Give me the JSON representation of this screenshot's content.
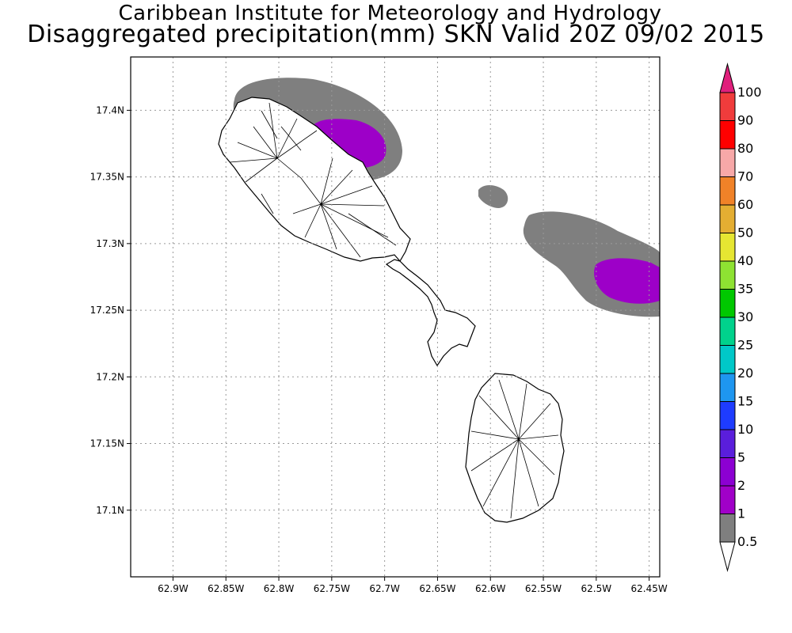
{
  "title": {
    "line1": "Caribbean Institute for Meteorology and Hydrology",
    "line2": "Disaggregated precipitation(mm) SKN Valid 20Z 09/02 2015"
  },
  "map": {
    "lon_range": [
      -62.94,
      -62.44
    ],
    "lat_range": [
      17.05,
      17.44
    ],
    "x_ticks": [
      {
        "value": -62.9,
        "label": "62.9W"
      },
      {
        "value": -62.85,
        "label": "62.85W"
      },
      {
        "value": -62.8,
        "label": "62.8W"
      },
      {
        "value": -62.75,
        "label": "62.75W"
      },
      {
        "value": -62.7,
        "label": "62.7W"
      },
      {
        "value": -62.65,
        "label": "62.65W"
      },
      {
        "value": -62.6,
        "label": "62.6W"
      },
      {
        "value": -62.55,
        "label": "62.55W"
      },
      {
        "value": -62.5,
        "label": "62.5W"
      },
      {
        "value": -62.45,
        "label": "62.45W"
      }
    ],
    "y_ticks": [
      {
        "value": 17.4,
        "label": "17.4N"
      },
      {
        "value": 17.35,
        "label": "17.35N"
      },
      {
        "value": 17.3,
        "label": "17.3N"
      },
      {
        "value": 17.25,
        "label": "17.25N"
      },
      {
        "value": 17.2,
        "label": "17.2N"
      },
      {
        "value": 17.15,
        "label": "17.15N"
      },
      {
        "value": 17.1,
        "label": "17.1N"
      }
    ],
    "grid": true,
    "islands": [
      "St. Kitts",
      "Nevis"
    ]
  },
  "colorbar": {
    "levels": [
      {
        "label": "100",
        "color": "#e0207c"
      },
      {
        "label": "90",
        "color": "#f03c3c"
      },
      {
        "label": "80",
        "color": "#ff0000"
      },
      {
        "label": "70",
        "color": "#f7a8a8"
      },
      {
        "label": "60",
        "color": "#f08228"
      },
      {
        "label": "50",
        "color": "#e4ae32"
      },
      {
        "label": "40",
        "color": "#e6e632"
      },
      {
        "label": "35",
        "color": "#8ee232"
      },
      {
        "label": "30",
        "color": "#00c800"
      },
      {
        "label": "25",
        "color": "#00d28c"
      },
      {
        "label": "20",
        "color": "#00c8c8"
      },
      {
        "label": "15",
        "color": "#1e96f0"
      },
      {
        "label": "10",
        "color": "#1e3cff"
      },
      {
        "label": "5",
        "color": "#5a1edc"
      },
      {
        "label": "2",
        "color": "#8c00d2"
      },
      {
        "label": "1",
        "color": "#a000c8"
      },
      {
        "label": "0.5",
        "color": "#7f7f7f"
      }
    ]
  }
}
